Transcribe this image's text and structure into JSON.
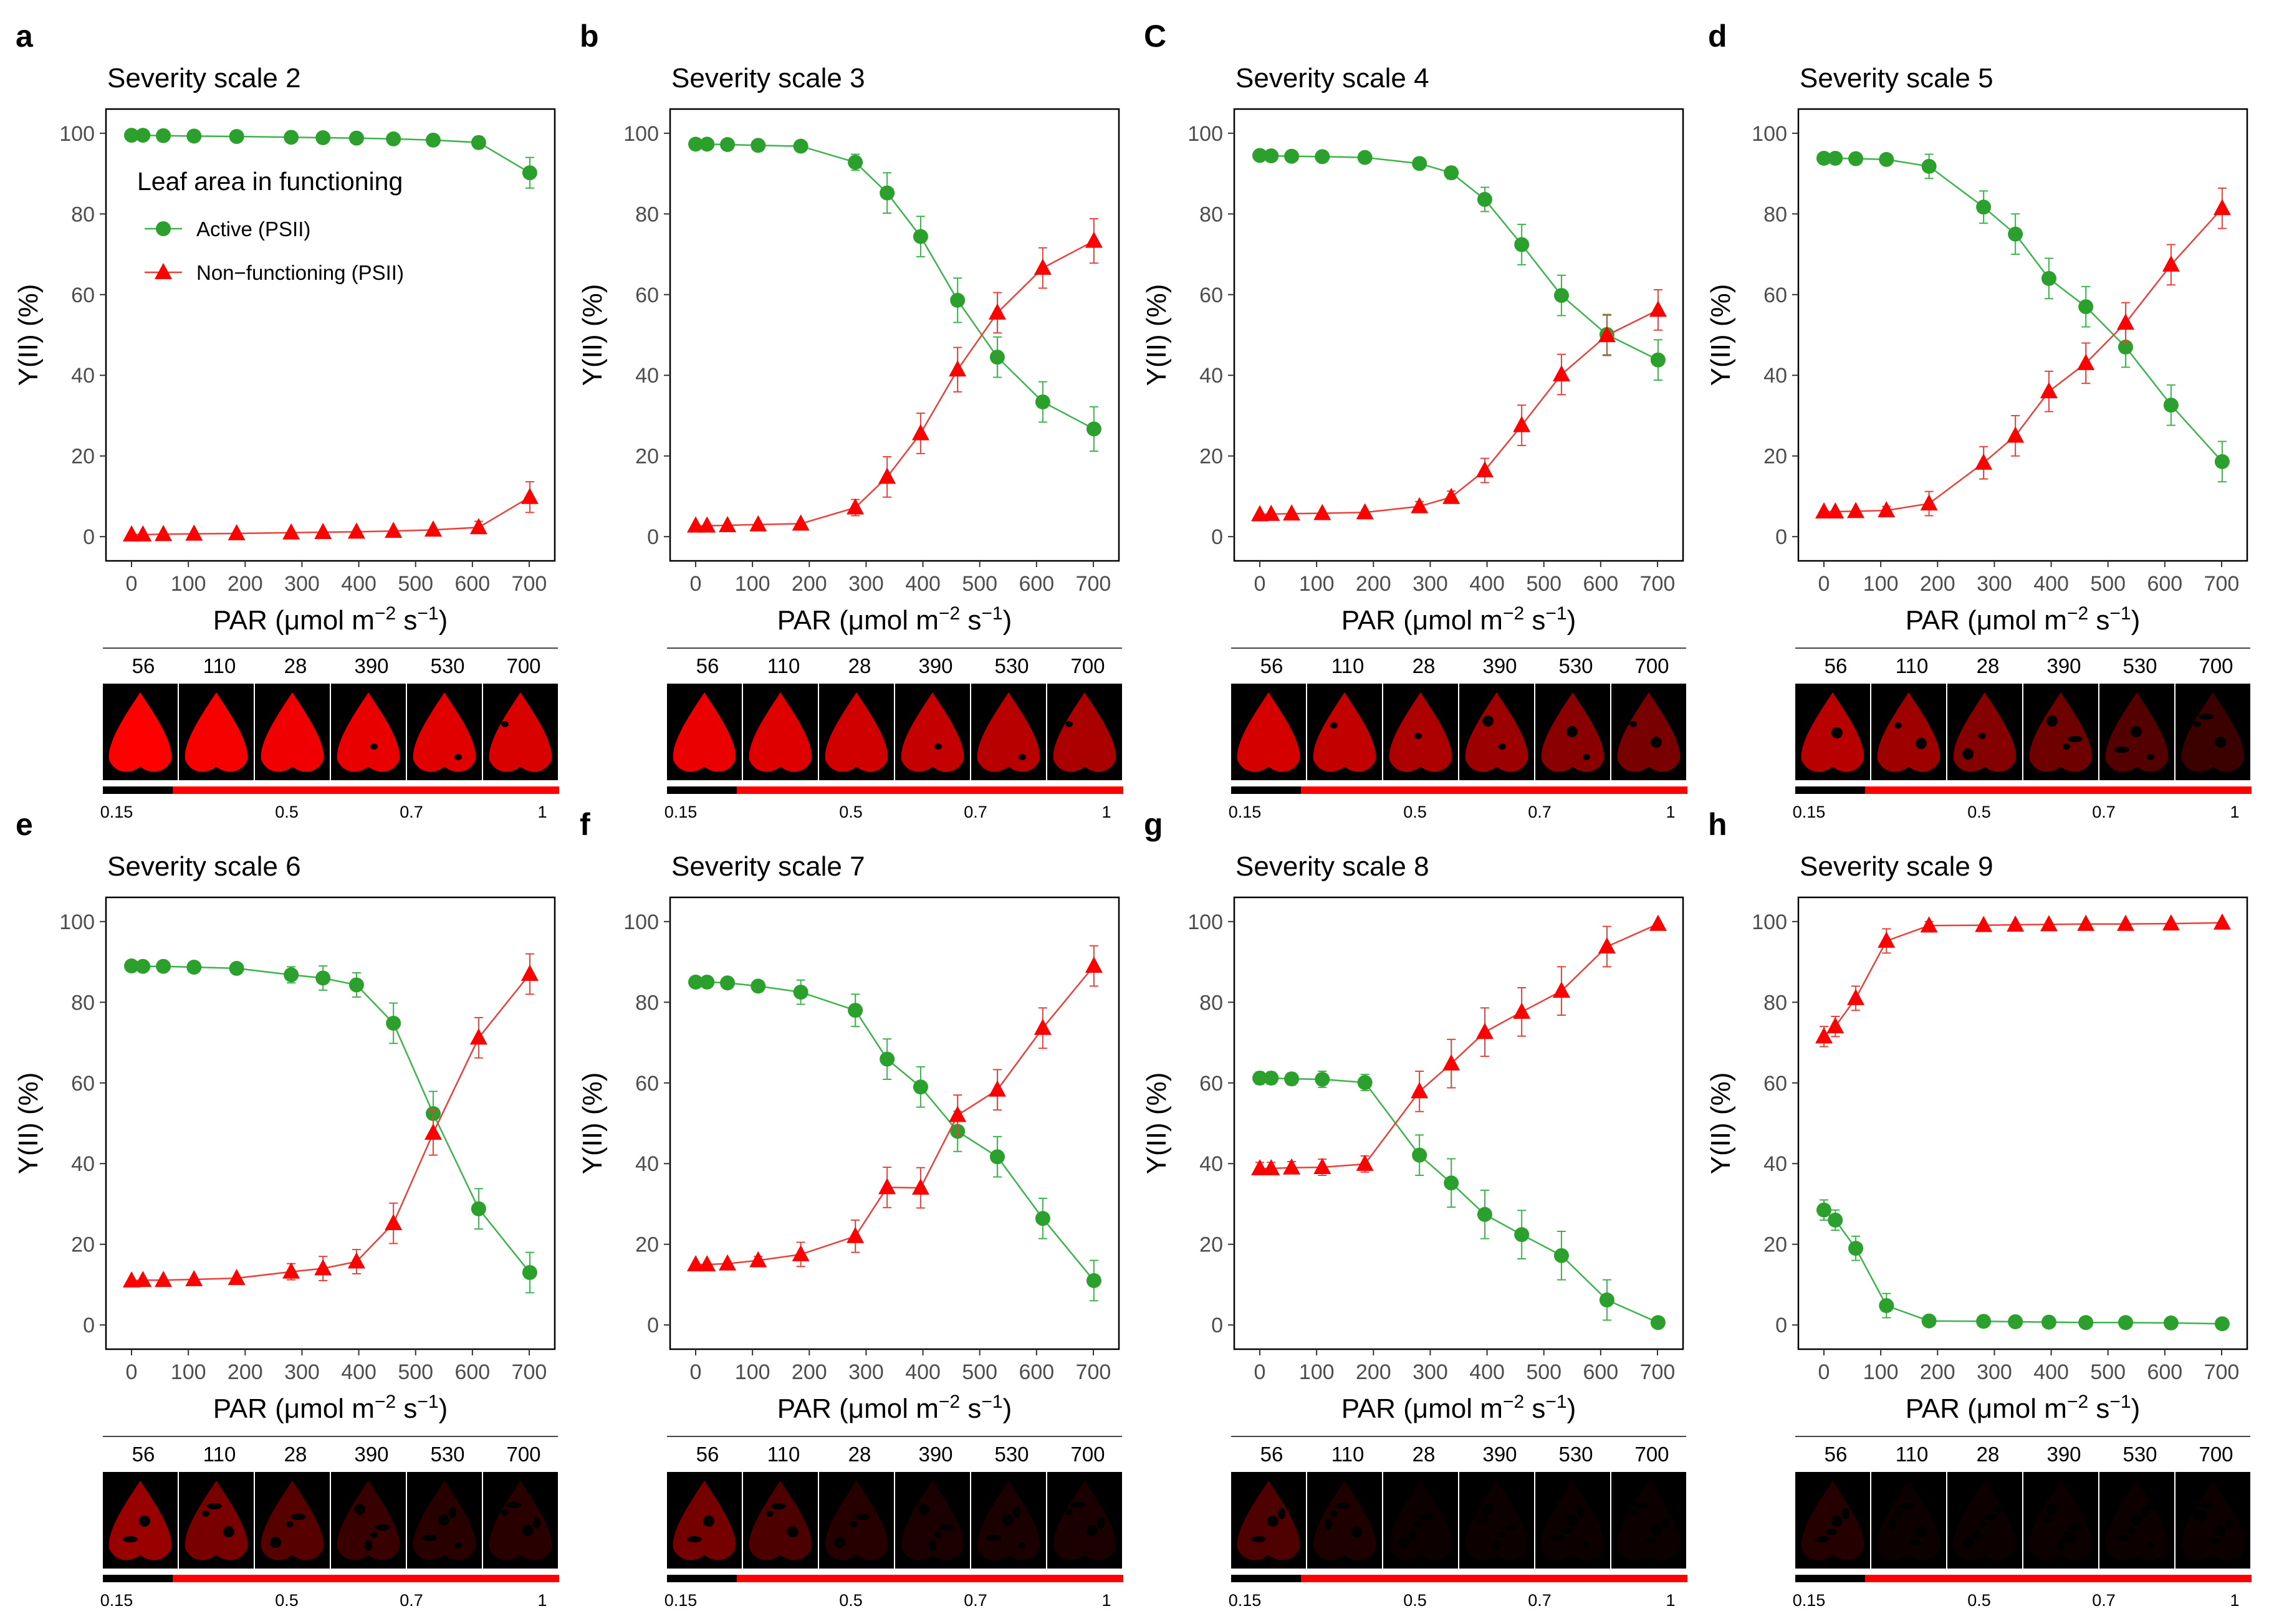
{
  "colors": {
    "active": "#2ca02c",
    "nonfunctioning": "#ff0000",
    "active_line": "#3cb44b",
    "nonfunctioning_line": "#e8413a"
  },
  "legend": {
    "title": "Leaf area in functioning",
    "active": "Active (PSII)",
    "nonfunctioning": "Non−functioning (PSII)"
  },
  "axis": {
    "ylabel": "Y(II) (%)",
    "xlabel_main": "PAR  (μmol m",
    "xlabel_exp1": "−2",
    "xlabel_mid": " s",
    "xlabel_exp2": "−1",
    "xlabel_end": ")",
    "xticks": [
      0,
      100,
      200,
      300,
      400,
      500,
      600,
      700
    ],
    "yticks": [
      0,
      20,
      40,
      60,
      80,
      100
    ],
    "xlim": [
      -45,
      745
    ],
    "ylim": [
      -6,
      106
    ]
  },
  "leaf_strip": {
    "labels": [
      "56",
      "110",
      "28",
      "390",
      "530",
      "700"
    ],
    "colorbar_ticks": [
      "0.15",
      "0.5",
      "0.7",
      "1"
    ]
  },
  "chart_data": [
    {
      "type": "line",
      "letter": "a",
      "title": "Severity scale 2",
      "legend_shown": true,
      "x": [
        0,
        20,
        56,
        110,
        185,
        281,
        337,
        396,
        461,
        531,
        611,
        701
      ],
      "series": [
        {
          "name": "Active (PSII)",
          "values": [
            99.5,
            99.5,
            99.4,
            99.3,
            99.2,
            99.0,
            98.9,
            98.8,
            98.6,
            98.3,
            97.7,
            90.2
          ],
          "err": [
            0.3,
            0.3,
            0.3,
            0.3,
            0.3,
            0.4,
            0.4,
            0.5,
            0.6,
            0.8,
            1.5,
            3.8
          ]
        },
        {
          "name": "Non-functioning (PSII)",
          "values": [
            0.5,
            0.5,
            0.6,
            0.7,
            0.8,
            1.0,
            1.1,
            1.2,
            1.4,
            1.7,
            2.3,
            9.8
          ],
          "err": [
            0.3,
            0.3,
            0.3,
            0.3,
            0.3,
            0.4,
            0.4,
            0.5,
            0.6,
            0.8,
            1.5,
            3.8
          ]
        }
      ]
    },
    {
      "type": "line",
      "letter": "b",
      "title": "Severity scale 3",
      "legend_shown": false,
      "x": [
        0,
        20,
        56,
        110,
        185,
        281,
        337,
        396,
        461,
        531,
        611,
        701
      ],
      "series": [
        {
          "name": "Active (PSII)",
          "values": [
            97.3,
            97.3,
            97.2,
            97.0,
            96.8,
            92.8,
            85.2,
            74.4,
            58.6,
            44.5,
            33.4,
            26.7
          ],
          "err": [
            0.5,
            0.5,
            0.5,
            0.5,
            0.6,
            2.0,
            5.0,
            5.0,
            5.5,
            5.0,
            5.0,
            5.5
          ]
        },
        {
          "name": "Non-functioning (PSII)",
          "values": [
            2.7,
            2.7,
            2.8,
            3.0,
            3.2,
            7.2,
            14.8,
            25.6,
            41.4,
            55.5,
            66.6,
            73.3
          ],
          "err": [
            0.5,
            0.5,
            0.5,
            0.5,
            0.6,
            2.0,
            5.0,
            5.0,
            5.5,
            5.0,
            5.0,
            5.5
          ]
        }
      ]
    },
    {
      "type": "line",
      "letter": "C",
      "title": "Severity scale 4",
      "legend_shown": false,
      "x": [
        0,
        20,
        56,
        110,
        185,
        281,
        337,
        396,
        461,
        531,
        611,
        701
      ],
      "series": [
        {
          "name": "Active (PSII)",
          "values": [
            94.5,
            94.4,
            94.3,
            94.2,
            94.0,
            92.5,
            90.2,
            83.6,
            72.4,
            59.8,
            50.1,
            43.8
          ],
          "err": [
            0.8,
            0.8,
            0.8,
            0.8,
            0.8,
            1.2,
            1.5,
            3.0,
            5.0,
            5.0,
            5.0,
            5.0
          ]
        },
        {
          "name": "Non-functioning (PSII)",
          "values": [
            5.5,
            5.6,
            5.7,
            5.8,
            6.0,
            7.5,
            9.8,
            16.4,
            27.6,
            40.2,
            49.9,
            56.2
          ],
          "err": [
            0.8,
            0.8,
            0.8,
            0.8,
            0.8,
            1.2,
            1.5,
            3.0,
            5.0,
            5.0,
            5.0,
            5.0
          ]
        }
      ]
    },
    {
      "type": "line",
      "letter": "d",
      "title": "Severity scale 5",
      "legend_shown": false,
      "x": [
        0,
        20,
        56,
        110,
        185,
        281,
        337,
        396,
        461,
        531,
        611,
        701
      ],
      "series": [
        {
          "name": "Active (PSII)",
          "values": [
            93.8,
            93.8,
            93.7,
            93.5,
            91.8,
            81.7,
            75.0,
            64.0,
            57.0,
            47.0,
            32.6,
            18.6
          ],
          "err": [
            0.8,
            0.8,
            0.8,
            1.0,
            3.0,
            4.0,
            5.0,
            5.0,
            5.0,
            5.0,
            5.0,
            5.0
          ]
        },
        {
          "name": "Non-functioning (PSII)",
          "values": [
            6.2,
            6.2,
            6.3,
            6.5,
            8.2,
            18.3,
            25.0,
            36.0,
            43.0,
            53.0,
            67.4,
            81.4
          ],
          "err": [
            0.8,
            0.8,
            0.8,
            1.0,
            3.0,
            4.0,
            5.0,
            5.0,
            5.0,
            5.0,
            5.0,
            5.0
          ]
        }
      ]
    },
    {
      "type": "line",
      "letter": "e",
      "title": "Severity scale 6",
      "legend_shown": false,
      "x": [
        0,
        20,
        56,
        110,
        185,
        281,
        337,
        396,
        461,
        531,
        611,
        701
      ],
      "series": [
        {
          "name": "Active (PSII)",
          "values": [
            89.0,
            88.9,
            88.9,
            88.7,
            88.4,
            86.8,
            86.0,
            84.3,
            74.8,
            52.4,
            28.8,
            13.0
          ],
          "err": [
            0.8,
            0.8,
            0.8,
            0.8,
            0.8,
            2.0,
            3.0,
            3.0,
            5.0,
            5.5,
            5.0,
            5.0
          ]
        },
        {
          "name": "Non-functioning (PSII)",
          "values": [
            11.0,
            11.1,
            11.1,
            11.3,
            11.6,
            13.2,
            14.0,
            15.7,
            25.2,
            47.6,
            71.2,
            87.0
          ],
          "err": [
            0.8,
            0.8,
            0.8,
            0.8,
            0.8,
            2.0,
            3.0,
            3.0,
            5.0,
            5.5,
            5.0,
            5.0
          ]
        }
      ]
    },
    {
      "type": "line",
      "letter": "f",
      "title": "Severity scale 7",
      "legend_shown": false,
      "x": [
        0,
        20,
        56,
        110,
        185,
        281,
        337,
        396,
        461,
        531,
        611,
        701
      ],
      "series": [
        {
          "name": "Active (PSII)",
          "values": [
            85.0,
            85.0,
            84.8,
            84.0,
            82.5,
            78.0,
            65.9,
            59.0,
            48.0,
            41.7,
            26.4,
            11.0
          ],
          "err": [
            0.8,
            0.8,
            0.8,
            1.0,
            3.0,
            4.0,
            5.0,
            5.0,
            5.0,
            5.0,
            5.0,
            5.0
          ]
        },
        {
          "name": "Non-functioning (PSII)",
          "values": [
            15.0,
            15.0,
            15.2,
            16.0,
            17.5,
            22.0,
            34.1,
            34.0,
            52.0,
            58.3,
            73.6,
            89.0
          ],
          "err": [
            0.8,
            0.8,
            0.8,
            1.0,
            3.0,
            4.0,
            5.0,
            5.0,
            5.0,
            5.0,
            5.0,
            5.0
          ]
        }
      ]
    },
    {
      "type": "line",
      "letter": "g",
      "title": "Severity scale 8",
      "legend_shown": false,
      "x": [
        0,
        20,
        56,
        110,
        185,
        281,
        337,
        396,
        461,
        531,
        611,
        701
      ],
      "series": [
        {
          "name": "Active (PSII)",
          "values": [
            61.2,
            61.2,
            61.0,
            60.9,
            60.1,
            42.1,
            35.2,
            27.4,
            22.4,
            17.2,
            6.2,
            0.6
          ],
          "err": [
            1.5,
            1.5,
            1.5,
            2.0,
            2.0,
            5.0,
            6.0,
            6.0,
            6.0,
            6.0,
            5.0,
            0.5
          ]
        },
        {
          "name": "Non-functioning (PSII)",
          "values": [
            38.8,
            38.8,
            39.0,
            39.1,
            39.9,
            57.9,
            64.8,
            72.6,
            77.6,
            82.8,
            93.8,
            99.4
          ],
          "err": [
            1.5,
            1.5,
            1.5,
            2.0,
            2.0,
            5.0,
            6.0,
            6.0,
            6.0,
            6.0,
            5.0,
            0.5
          ]
        }
      ]
    },
    {
      "type": "line",
      "letter": "h",
      "title": "Severity scale 9",
      "legend_shown": false,
      "x": [
        0,
        20,
        56,
        110,
        185,
        281,
        337,
        396,
        461,
        531,
        611,
        701
      ],
      "series": [
        {
          "name": "Active (PSII)",
          "values": [
            28.5,
            26.0,
            19.0,
            4.8,
            1.0,
            0.9,
            0.8,
            0.7,
            0.6,
            0.6,
            0.5,
            0.3
          ],
          "err": [
            2.5,
            2.5,
            3.0,
            3.0,
            1.0,
            0.6,
            0.6,
            0.5,
            0.5,
            0.5,
            0.5,
            0.3
          ]
        },
        {
          "name": "Non-functioning (PSII)",
          "values": [
            71.5,
            74.0,
            81.0,
            95.2,
            99.0,
            99.1,
            99.2,
            99.3,
            99.4,
            99.4,
            99.5,
            99.7
          ],
          "err": [
            2.5,
            2.5,
            3.0,
            3.0,
            1.0,
            0.6,
            0.6,
            0.5,
            0.5,
            0.5,
            0.5,
            0.3
          ]
        }
      ]
    }
  ]
}
